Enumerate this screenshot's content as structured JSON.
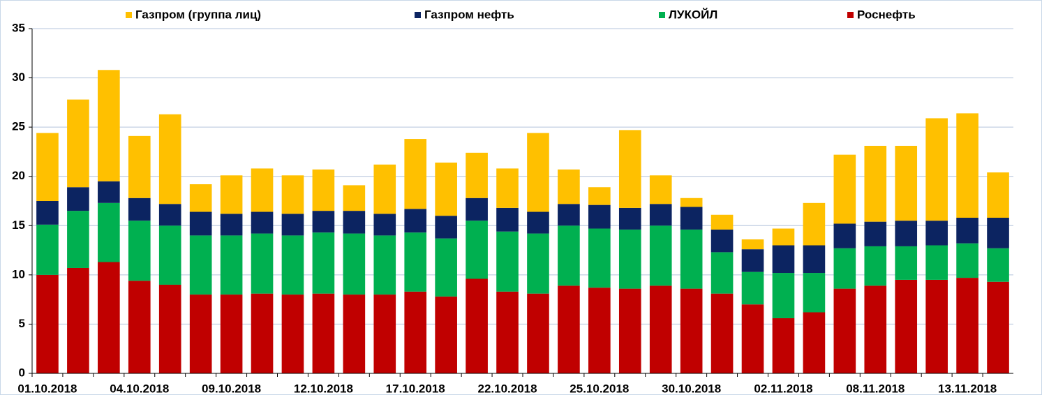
{
  "chart_data": {
    "type": "stacked_bar",
    "categories": [
      "01.10.2018",
      null,
      null,
      "04.10.2018",
      null,
      null,
      "09.10.2018",
      null,
      null,
      "12.10.2018",
      null,
      null,
      "17.10.2018",
      null,
      null,
      "22.10.2018",
      null,
      null,
      "25.10.2018",
      null,
      null,
      "30.10.2018",
      null,
      null,
      "02.11.2018",
      null,
      null,
      "08.11.2018",
      null,
      null,
      "13.11.2018",
      null
    ],
    "series": [
      {
        "name": "Роснефть",
        "color": "#c00000",
        "values": [
          10.0,
          10.7,
          11.3,
          9.4,
          9.0,
          8.0,
          8.0,
          8.1,
          8.0,
          8.1,
          8.0,
          8.0,
          8.3,
          7.8,
          9.6,
          8.3,
          8.1,
          8.9,
          8.7,
          8.6,
          8.9,
          8.6,
          8.1,
          7.0,
          5.6,
          6.2,
          8.6,
          8.9,
          9.5,
          9.5,
          9.7,
          9.3
        ]
      },
      {
        "name": "ЛУКОЙЛ",
        "color": "#00b050",
        "values": [
          5.1,
          5.8,
          6.0,
          6.1,
          6.0,
          6.0,
          6.0,
          6.1,
          6.0,
          6.2,
          6.2,
          6.0,
          6.0,
          5.9,
          5.9,
          6.1,
          6.1,
          6.1,
          6.0,
          6.0,
          6.1,
          6.0,
          4.2,
          3.3,
          4.6,
          4.0,
          4.1,
          4.0,
          3.4,
          3.5,
          3.5,
          3.4
        ]
      },
      {
        "name": "Газпром нефть",
        "color": "#0c2461",
        "values": [
          2.4,
          2.4,
          2.2,
          2.3,
          2.2,
          2.4,
          2.2,
          2.2,
          2.2,
          2.2,
          2.3,
          2.2,
          2.4,
          2.3,
          2.3,
          2.4,
          2.2,
          2.2,
          2.4,
          2.2,
          2.2,
          2.3,
          2.3,
          2.3,
          2.8,
          2.8,
          2.5,
          2.5,
          2.6,
          2.5,
          2.6,
          3.1
        ]
      },
      {
        "name": "Газпром (группа лиц)",
        "color": "#ffc000",
        "values": [
          6.9,
          8.9,
          11.3,
          6.3,
          9.1,
          2.8,
          3.9,
          4.4,
          3.9,
          4.2,
          2.6,
          5.0,
          7.1,
          5.4,
          4.6,
          4.0,
          8.0,
          3.5,
          1.8,
          7.9,
          2.9,
          0.9,
          1.5,
          1.0,
          1.7,
          4.3,
          7.0,
          7.7,
          7.6,
          10.4,
          10.6,
          4.6
        ]
      }
    ],
    "ylim": [
      0,
      35
    ],
    "yticks": [
      0,
      5,
      10,
      15,
      20,
      25,
      30,
      35
    ],
    "grid": true,
    "legend": "top"
  }
}
